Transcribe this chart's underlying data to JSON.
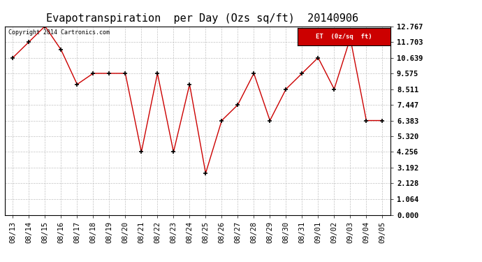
{
  "title": "Evapotranspiration  per Day (Ozs sq/ft)  20140906",
  "copyright_text": "Copyright 2014 Cartronics.com",
  "legend_label": "ET  (0z/sq  ft)",
  "x_labels": [
    "08/13",
    "08/14",
    "08/15",
    "08/16",
    "08/17",
    "08/18",
    "08/19",
    "08/20",
    "08/21",
    "08/22",
    "08/23",
    "08/24",
    "08/25",
    "08/26",
    "08/27",
    "08/28",
    "08/29",
    "08/30",
    "08/31",
    "09/01",
    "09/02",
    "09/03",
    "09/04",
    "09/05"
  ],
  "y_values": [
    10.639,
    11.703,
    12.767,
    11.171,
    8.831,
    9.575,
    9.575,
    9.575,
    4.256,
    9.575,
    4.256,
    8.831,
    2.816,
    6.383,
    7.447,
    9.575,
    6.383,
    8.511,
    9.575,
    10.639,
    8.511,
    11.959,
    6.383,
    6.383
  ],
  "y_ticks": [
    0.0,
    1.064,
    2.128,
    3.192,
    4.256,
    5.32,
    6.383,
    7.447,
    8.511,
    9.575,
    10.639,
    11.703,
    12.767
  ],
  "y_min": 0.0,
  "y_max": 12.767,
  "line_color": "#cc0000",
  "marker_color": "#000000",
  "bg_color": "#ffffff",
  "grid_color": "#bbbbbb",
  "legend_bg": "#cc0000",
  "legend_text_color": "#ffffff",
  "title_fontsize": 11,
  "tick_fontsize": 7.5,
  "copyright_fontsize": 6.0
}
